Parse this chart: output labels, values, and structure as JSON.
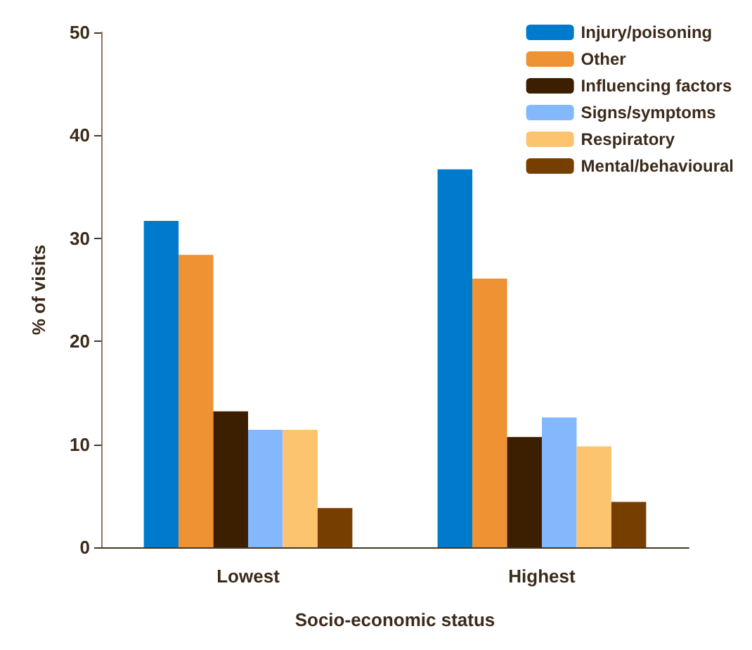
{
  "chart_data": {
    "type": "bar",
    "xlabel": "Socio-economic status",
    "ylabel": "% of visits",
    "categories": [
      "Lowest",
      "Highest"
    ],
    "series": [
      {
        "name": "Injury/poisoning",
        "color": "#007acc",
        "values": [
          31.7,
          36.7
        ]
      },
      {
        "name": "Other",
        "color": "#ee9234",
        "values": [
          28.4,
          26.1
        ]
      },
      {
        "name": "Influencing factors",
        "color": "#3c1f00",
        "values": [
          13.2,
          10.7
        ]
      },
      {
        "name": "Signs/symptoms",
        "color": "#84b8fc",
        "values": [
          11.4,
          12.6
        ]
      },
      {
        "name": "Respiratory",
        "color": "#fcc46f",
        "values": [
          11.4,
          9.8
        ]
      },
      {
        "name": "Mental/behavioural",
        "color": "#763f00",
        "values": [
          3.8,
          4.4
        ]
      }
    ],
    "ylim": [
      0,
      50
    ],
    "yticks": [
      0,
      10,
      20,
      30,
      40,
      50
    ],
    "grid": false,
    "legend": "top right"
  }
}
